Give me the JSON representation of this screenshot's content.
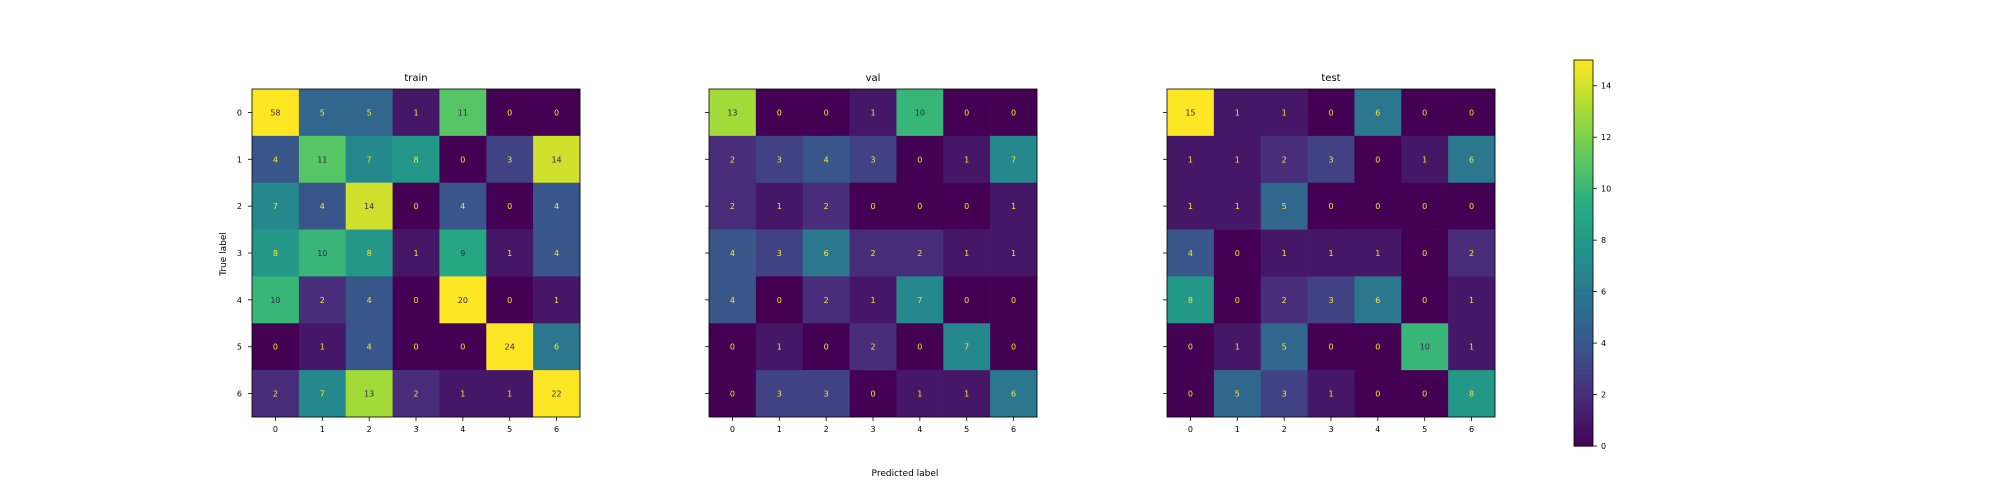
{
  "chart_data": {
    "type": "heatmap",
    "x_label": "Predicted label",
    "y_label": "True label",
    "x_ticks": [
      "0",
      "1",
      "2",
      "3",
      "4",
      "5",
      "6"
    ],
    "y_ticks": [
      "0",
      "1",
      "2",
      "3",
      "4",
      "5",
      "6"
    ],
    "colormap": "viridis",
    "colorbar": {
      "range": [
        0,
        15
      ],
      "ticks": [
        "0",
        "2",
        "4",
        "6",
        "8",
        "10",
        "12",
        "14"
      ]
    },
    "panels": [
      {
        "title": "train",
        "matrix": [
          [
            58,
            5,
            5,
            1,
            11,
            0,
            0
          ],
          [
            4,
            11,
            7,
            8,
            0,
            3,
            14
          ],
          [
            7,
            4,
            14,
            0,
            4,
            0,
            4
          ],
          [
            8,
            10,
            8,
            1,
            9,
            1,
            4
          ],
          [
            10,
            2,
            4,
            0,
            20,
            0,
            1
          ],
          [
            0,
            1,
            4,
            0,
            0,
            24,
            6
          ],
          [
            2,
            7,
            13,
            2,
            1,
            1,
            22
          ]
        ]
      },
      {
        "title": "val",
        "matrix": [
          [
            13,
            0,
            0,
            1,
            10,
            0,
            0
          ],
          [
            2,
            3,
            4,
            3,
            0,
            1,
            7
          ],
          [
            2,
            1,
            2,
            0,
            0,
            0,
            1
          ],
          [
            4,
            3,
            6,
            2,
            2,
            1,
            1
          ],
          [
            4,
            0,
            2,
            1,
            7,
            0,
            0
          ],
          [
            0,
            1,
            0,
            2,
            0,
            7,
            0
          ],
          [
            0,
            3,
            3,
            0,
            1,
            1,
            6
          ]
        ]
      },
      {
        "title": "test",
        "matrix": [
          [
            15,
            1,
            1,
            0,
            6,
            0,
            0
          ],
          [
            1,
            1,
            2,
            3,
            0,
            1,
            6
          ],
          [
            1,
            1,
            5,
            0,
            0,
            0,
            0
          ],
          [
            4,
            0,
            1,
            1,
            1,
            0,
            2
          ],
          [
            8,
            0,
            2,
            3,
            6,
            0,
            1
          ],
          [
            0,
            1,
            5,
            0,
            0,
            10,
            1
          ],
          [
            0,
            5,
            3,
            1,
            0,
            0,
            8
          ]
        ]
      }
    ]
  }
}
